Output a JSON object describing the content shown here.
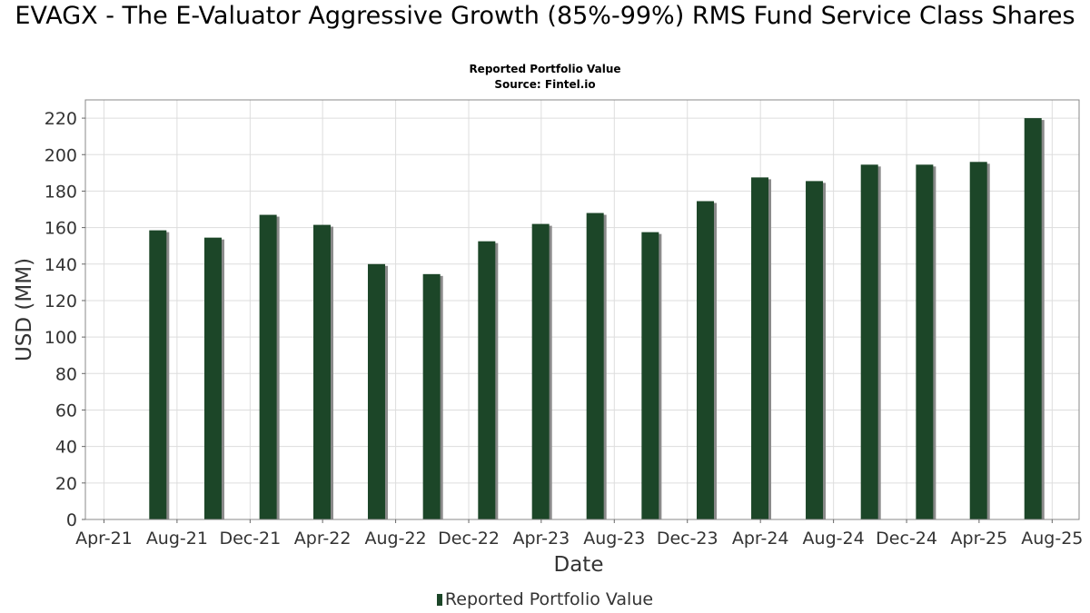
{
  "title": "EVAGX - The E-Valuator Aggressive Growth (85%-99%) RMS Fund Service Class Shares",
  "subtitle": "Reported Portfolio Value",
  "source": "Source: Fintel.io",
  "colors": {
    "bar": "#1c4628",
    "shadow": "#8a8a8a",
    "grid": "#dddddd",
    "plot_border": "#888888"
  },
  "chart_data": {
    "type": "bar",
    "title": "EVAGX - The E-Valuator Aggressive Growth (85%-99%) RMS Fund Service Class Shares",
    "subtitle": "Reported Portfolio Value",
    "xlabel": "Date",
    "ylabel": "USD (MM)",
    "ylim": [
      0,
      230
    ],
    "xlim": [
      "2021-03-01",
      "2025-09-15"
    ],
    "yticks": [
      0,
      20,
      40,
      60,
      80,
      100,
      120,
      140,
      160,
      180,
      200,
      220
    ],
    "xticks": [
      {
        "date": "2021-04-01",
        "label": "Apr-21"
      },
      {
        "date": "2021-08-01",
        "label": "Aug-21"
      },
      {
        "date": "2021-12-01",
        "label": "Dec-21"
      },
      {
        "date": "2022-04-01",
        "label": "Apr-22"
      },
      {
        "date": "2022-08-01",
        "label": "Aug-22"
      },
      {
        "date": "2022-12-01",
        "label": "Dec-22"
      },
      {
        "date": "2023-04-01",
        "label": "Apr-23"
      },
      {
        "date": "2023-08-01",
        "label": "Aug-23"
      },
      {
        "date": "2023-12-01",
        "label": "Dec-23"
      },
      {
        "date": "2024-04-01",
        "label": "Apr-24"
      },
      {
        "date": "2024-08-01",
        "label": "Aug-24"
      },
      {
        "date": "2024-12-01",
        "label": "Dec-24"
      },
      {
        "date": "2025-04-01",
        "label": "Apr-25"
      },
      {
        "date": "2025-08-01",
        "label": "Aug-25"
      }
    ],
    "grid": true,
    "legend_position": "bottom",
    "series": [
      {
        "name": "Reported Portfolio Value",
        "points": [
          {
            "x": "2021-06-30",
            "y": 158.5
          },
          {
            "x": "2021-09-30",
            "y": 154.5
          },
          {
            "x": "2021-12-31",
            "y": 167.0
          },
          {
            "x": "2022-03-31",
            "y": 161.5
          },
          {
            "x": "2022-06-30",
            "y": 140.0
          },
          {
            "x": "2022-09-30",
            "y": 134.5
          },
          {
            "x": "2022-12-31",
            "y": 152.5
          },
          {
            "x": "2023-03-31",
            "y": 162.0
          },
          {
            "x": "2023-06-30",
            "y": 168.0
          },
          {
            "x": "2023-09-30",
            "y": 157.5
          },
          {
            "x": "2023-12-31",
            "y": 174.5
          },
          {
            "x": "2024-03-31",
            "y": 187.5
          },
          {
            "x": "2024-06-30",
            "y": 185.5
          },
          {
            "x": "2024-09-30",
            "y": 194.5
          },
          {
            "x": "2024-12-31",
            "y": 194.5
          },
          {
            "x": "2025-03-31",
            "y": 196.0
          },
          {
            "x": "2025-06-30",
            "y": 220.0
          }
        ]
      }
    ]
  },
  "legend": {
    "label": "Reported Portfolio Value"
  }
}
